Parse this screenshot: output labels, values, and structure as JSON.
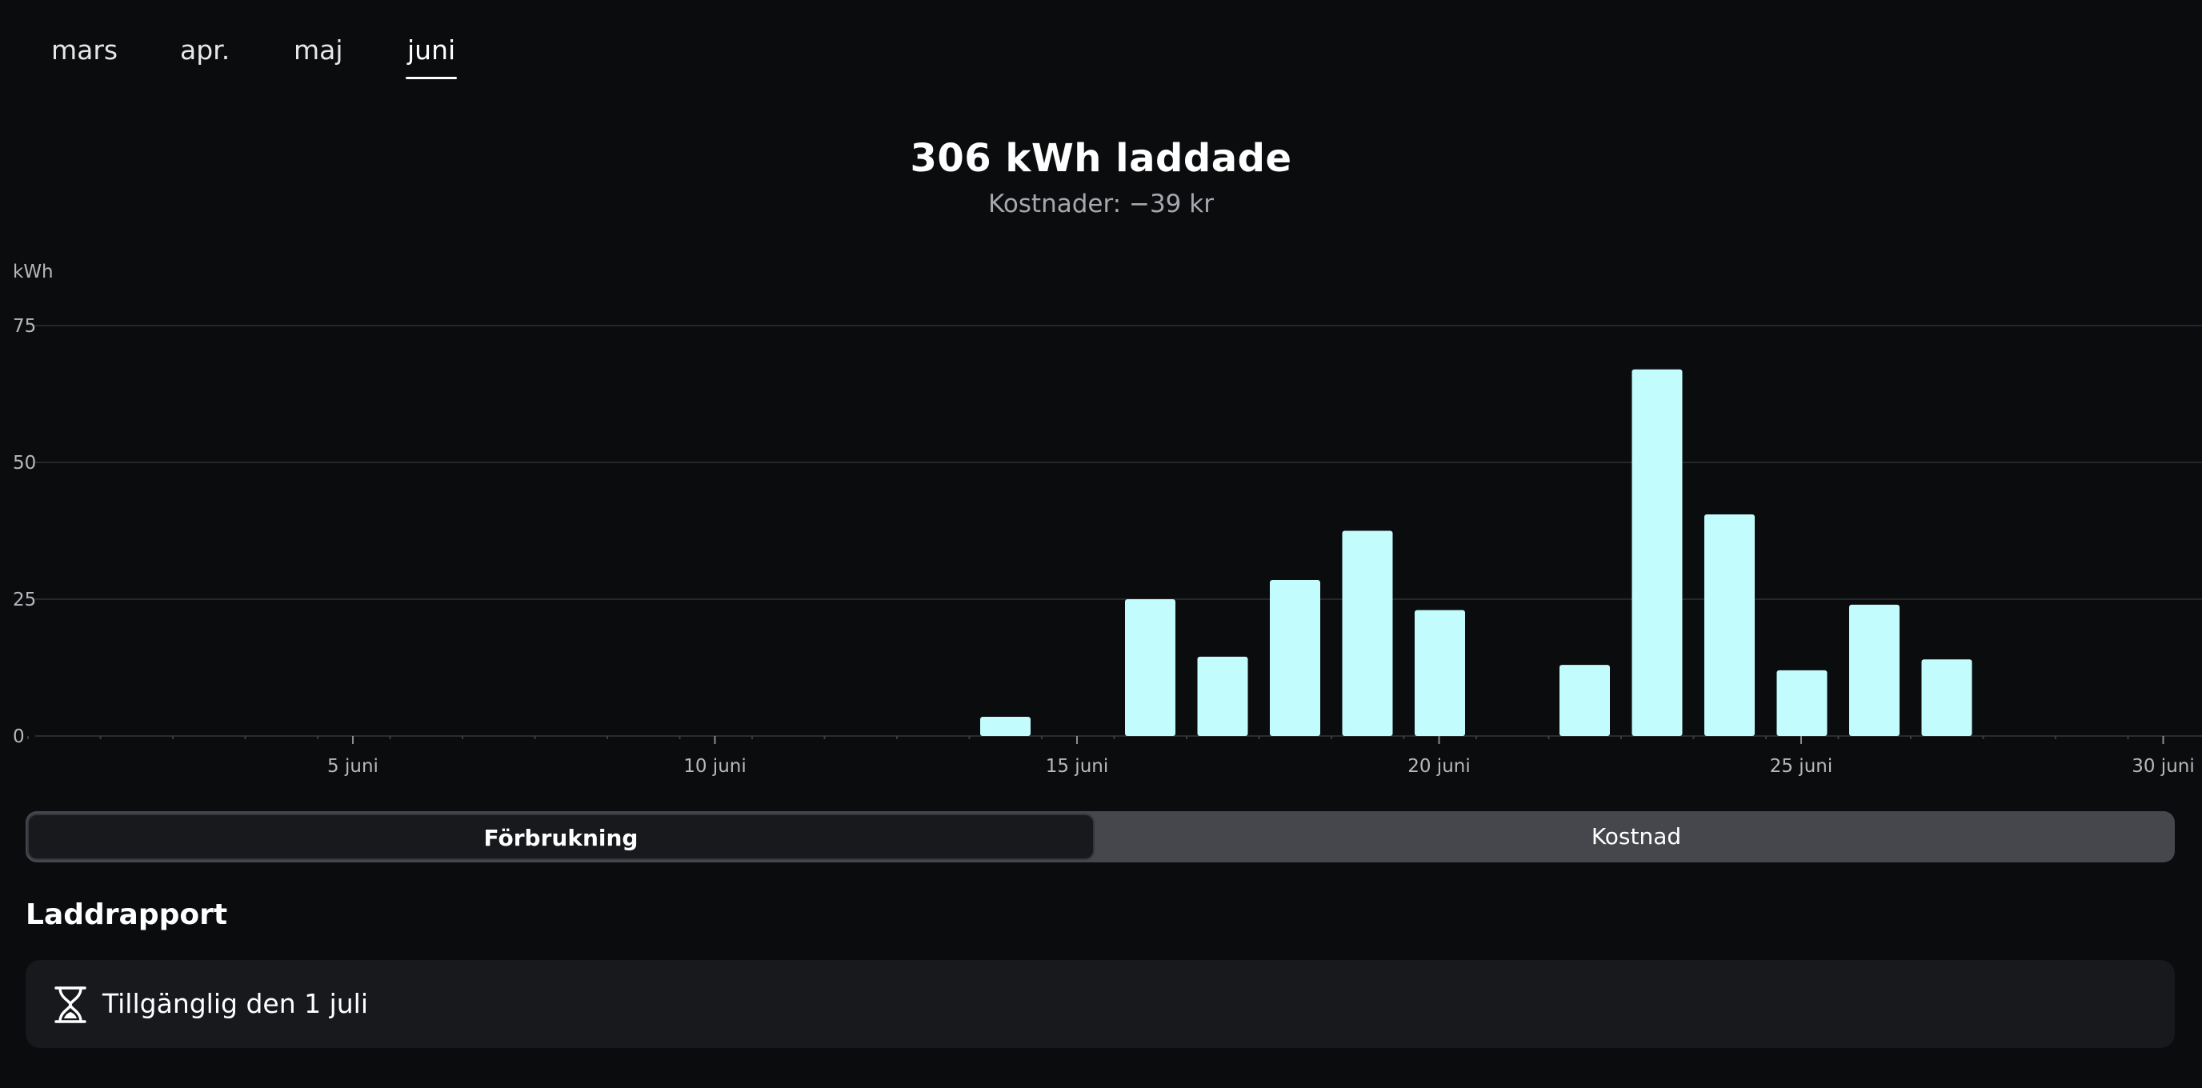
{
  "month_tabs": [
    {
      "label": "mars"
    },
    {
      "label": "apr."
    },
    {
      "label": "maj"
    },
    {
      "label": "juni",
      "active": true
    }
  ],
  "summary": {
    "title": "306 kWh laddade",
    "subtitle": "Kostnader: −39 kr"
  },
  "chart_data": {
    "type": "bar",
    "ylabel": "kWh",
    "ylim": [
      0,
      75
    ],
    "yticks": [
      0,
      25,
      50,
      75
    ],
    "xlim": [
      1,
      30
    ],
    "xticks": [
      {
        "day": 5,
        "label": "5 juni"
      },
      {
        "day": 10,
        "label": "10 juni"
      },
      {
        "day": 15,
        "label": "15 juni"
      },
      {
        "day": 20,
        "label": "20 juni"
      },
      {
        "day": 25,
        "label": "25 juni"
      },
      {
        "day": 30,
        "label": "30 juni"
      }
    ],
    "days": [
      14,
      16,
      17,
      18,
      19,
      20,
      22,
      23,
      24,
      25,
      26,
      27
    ],
    "values": [
      3.5,
      25,
      14.5,
      28.5,
      37.5,
      23,
      13,
      67,
      40.5,
      12,
      24,
      14
    ],
    "bar_color": "#c2fcfd",
    "grid": true
  },
  "segment": {
    "options": [
      "Förbrukning",
      "Kostnad"
    ],
    "selected": "Förbrukning"
  },
  "report": {
    "title": "Laddrapport",
    "icon": "hourglass-icon",
    "text": "Tillgänglig den 1 juli"
  },
  "colors": {
    "background": "#0b0c0e",
    "card": "#17191d",
    "accent_bar": "#c2fcfd"
  }
}
